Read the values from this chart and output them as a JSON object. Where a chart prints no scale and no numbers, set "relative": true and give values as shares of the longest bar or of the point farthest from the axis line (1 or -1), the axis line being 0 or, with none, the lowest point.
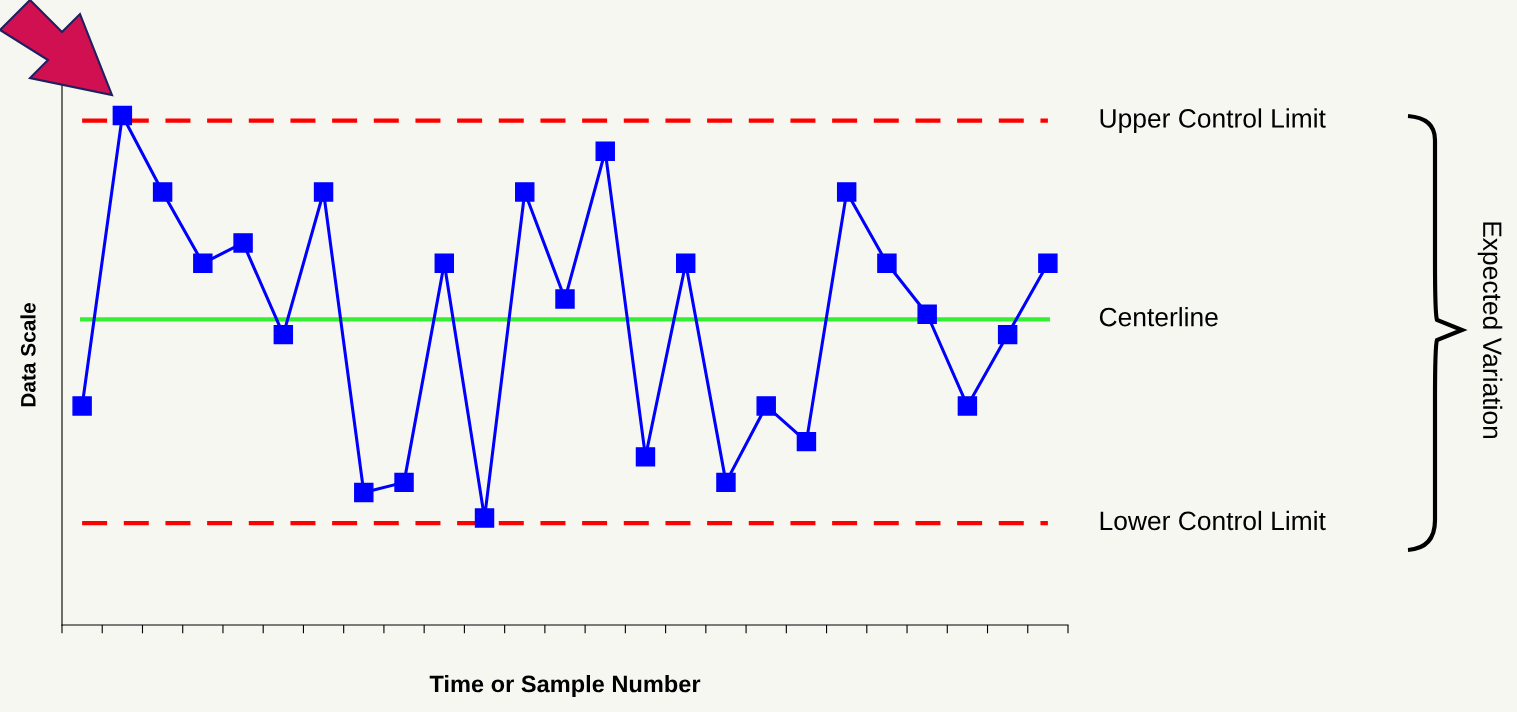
{
  "chart_data": {
    "type": "line",
    "relative": true,
    "xlabel": "Time or Sample Number",
    "ylabel": "Data Scale",
    "categories": [
      null,
      null,
      null,
      null,
      null,
      null,
      null,
      null,
      null,
      null,
      null,
      null,
      null,
      null,
      null,
      null,
      null,
      null,
      null,
      null,
      null,
      null,
      null,
      null,
      null
    ],
    "series": [
      {
        "color": "#0000ff",
        "values": [
          0.43,
          1.0,
          0.85,
          0.71,
          0.75,
          0.57,
          0.85,
          0.26,
          0.28,
          0.71,
          0.21,
          0.85,
          0.64,
          0.93,
          0.33,
          0.71,
          0.28,
          0.43,
          0.36,
          0.85,
          0.71,
          0.61,
          0.43,
          0.57,
          0.71
        ]
      }
    ],
    "marker": "square",
    "line_style": "solid",
    "grid": false,
    "tick_labels": false,
    "ref_lines": [
      {
        "axis": "y",
        "value": 0.99,
        "label": "Upper Control Limit",
        "color": "#ff0000",
        "line_style": "dashed"
      },
      {
        "axis": "y",
        "value": 0.6,
        "label": "Centerline",
        "color": "#33ee33",
        "line_style": "solid"
      },
      {
        "axis": "y",
        "value": 0.2,
        "label": "Lower Control Limit",
        "color": "#ff0000",
        "line_style": "dashed"
      }
    ],
    "annotations": [
      "Expected Variation"
    ]
  }
}
